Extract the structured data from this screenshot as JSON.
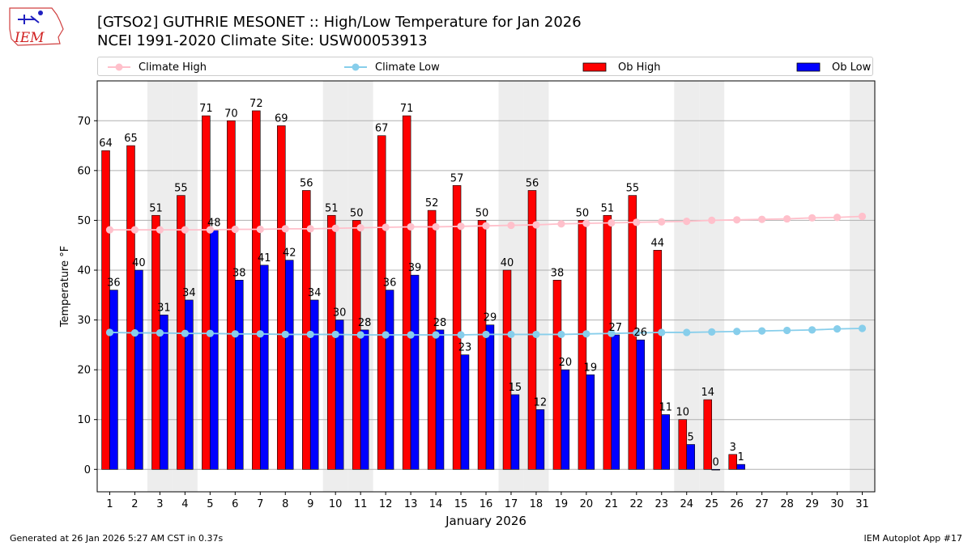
{
  "header": {
    "logo_text": "IEM",
    "title": "[GTSO2] GUTHRIE MESONET :: High/Low Temperature for Jan 2026",
    "subtitle": "NCEI 1991-2020 Climate Site: USW00053913"
  },
  "legend": {
    "items": [
      {
        "label": "Climate High",
        "kind": "line",
        "color": "#ffc0cb"
      },
      {
        "label": "Climate Low",
        "kind": "line",
        "color": "#87ceeb"
      },
      {
        "label": "Ob High",
        "kind": "bar",
        "color": "#ff0000"
      },
      {
        "label": "Ob Low",
        "kind": "bar",
        "color": "#0000ff"
      }
    ]
  },
  "chart_data": {
    "type": "bar",
    "xlabel": "January 2026",
    "ylabel": "Temperature °F",
    "ylim": [
      -4.5,
      78
    ],
    "yticks": [
      0,
      10,
      20,
      30,
      40,
      50,
      60,
      70
    ],
    "categories": [
      "1",
      "2",
      "3",
      "4",
      "5",
      "6",
      "7",
      "8",
      "9",
      "10",
      "11",
      "12",
      "13",
      "14",
      "15",
      "16",
      "17",
      "18",
      "19",
      "20",
      "21",
      "22",
      "23",
      "24",
      "25",
      "26",
      "27",
      "28",
      "29",
      "30",
      "31"
    ],
    "weekend_days": [
      3,
      4,
      10,
      11,
      17,
      18,
      24,
      25,
      31
    ],
    "grid": "horizontal",
    "series": [
      {
        "name": "Ob High",
        "kind": "bar",
        "color": "#ff0000",
        "values": [
          64,
          65,
          51,
          55,
          71,
          70,
          72,
          69,
          56,
          51,
          50,
          67,
          71,
          52,
          57,
          50,
          40,
          56,
          38,
          50,
          51,
          55,
          44,
          10,
          14,
          3,
          null,
          null,
          null,
          null,
          null
        ]
      },
      {
        "name": "Ob Low",
        "kind": "bar",
        "color": "#0000ff",
        "values": [
          36,
          40,
          31,
          34,
          48,
          38,
          41,
          42,
          34,
          30,
          28,
          36,
          39,
          28,
          23,
          29,
          15,
          12,
          20,
          19,
          27,
          26,
          11,
          5,
          0,
          1,
          null,
          null,
          null,
          null,
          null
        ]
      },
      {
        "name": "Climate High",
        "kind": "line",
        "color": "#ffc0cb",
        "values": [
          48.1,
          48.1,
          48.1,
          48.1,
          48.1,
          48.2,
          48.2,
          48.3,
          48.3,
          48.4,
          48.5,
          48.6,
          48.7,
          48.7,
          48.8,
          48.9,
          49.0,
          49.1,
          49.3,
          49.4,
          49.5,
          49.6,
          49.7,
          49.8,
          50.0,
          50.1,
          50.2,
          50.3,
          50.5,
          50.6,
          50.8
        ]
      },
      {
        "name": "Climate Low",
        "kind": "line",
        "color": "#87ceeb",
        "values": [
          27.5,
          27.4,
          27.4,
          27.3,
          27.3,
          27.2,
          27.2,
          27.1,
          27.1,
          27.1,
          27.0,
          27.0,
          27.0,
          27.0,
          27.0,
          27.1,
          27.1,
          27.1,
          27.1,
          27.2,
          27.3,
          27.4,
          27.5,
          27.5,
          27.6,
          27.7,
          27.8,
          27.9,
          28.0,
          28.2,
          28.3
        ]
      }
    ]
  },
  "footer": {
    "left": "Generated at 26 Jan 2026 5:27 AM CST in 0.37s",
    "right": "IEM Autoplot App #17"
  }
}
